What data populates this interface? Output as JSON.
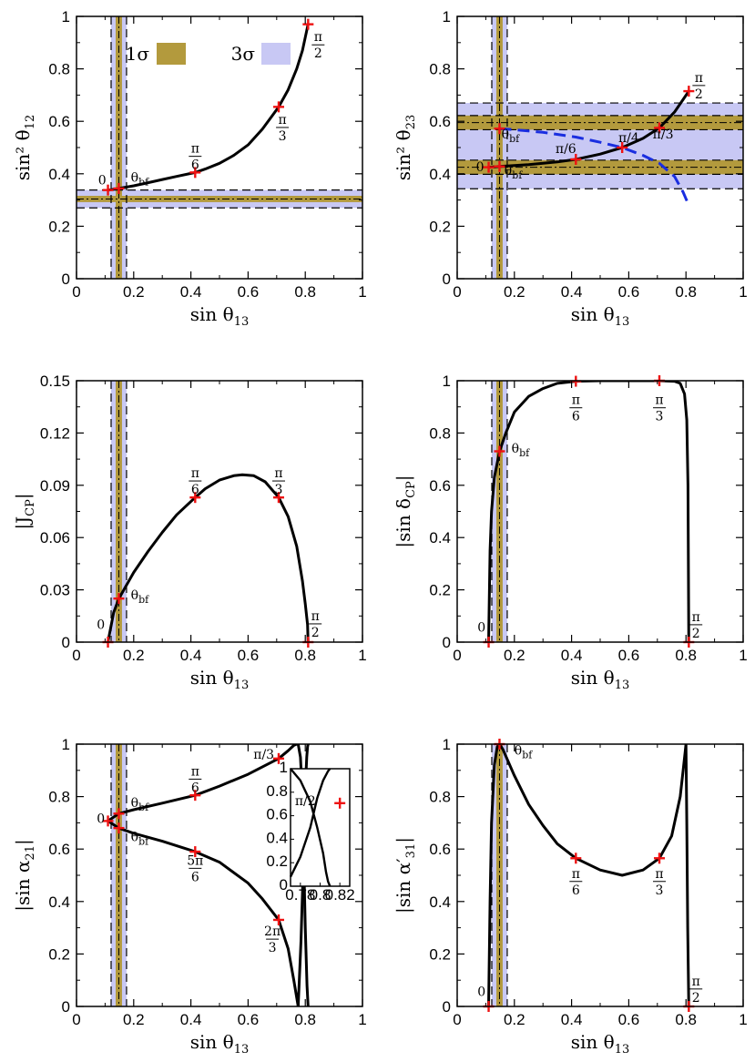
{
  "figure": {
    "legend": {
      "items": [
        {
          "label": "1σ",
          "color": "#b39a3d"
        },
        {
          "label": "3σ",
          "color": "#c8c8f4"
        }
      ],
      "location": "top"
    },
    "colors": {
      "band1": "#b39a3d",
      "band3": "#c8c8f4",
      "curve": "#000000",
      "marker": "#ee1111",
      "dashed": "#1a2ee0"
    }
  },
  "chart_data": [
    {
      "id": "p1",
      "type": "line",
      "xlabel": "sin θ13",
      "ylabel": "sin² θ12",
      "xlim": [
        0,
        1
      ],
      "ylim": [
        0,
        1
      ],
      "xticks": [
        "0",
        "0.2",
        "0.4",
        "0.6",
        "0.8",
        "1"
      ],
      "yticks": [
        "0",
        "0.2",
        "0.4",
        "0.6",
        "0.8",
        "1"
      ],
      "bands": {
        "x": {
          "center": 0.148,
          "w1": 0.011,
          "w3": 0.027
        },
        "y": {
          "center": 0.304,
          "w1": 0.012,
          "w3": 0.034
        }
      },
      "series": [
        {
          "name": "main",
          "style": "solid",
          "x": [
            0.11,
            0.12,
            0.148,
            0.2,
            0.25,
            0.3,
            0.35,
            0.415,
            0.45,
            0.5,
            0.55,
            0.6,
            0.65,
            0.707,
            0.74,
            0.77,
            0.79,
            0.81
          ],
          "y": [
            0.338,
            0.339,
            0.344,
            0.354,
            0.366,
            0.378,
            0.39,
            0.405,
            0.418,
            0.44,
            0.47,
            0.51,
            0.57,
            0.655,
            0.72,
            0.8,
            0.87,
            0.97
          ]
        }
      ],
      "markers": [
        {
          "x": 0.11,
          "y": 0.338
        },
        {
          "x": 0.148,
          "y": 0.344
        },
        {
          "x": 0.415,
          "y": 0.405
        },
        {
          "x": 0.707,
          "y": 0.655
        },
        {
          "x": 0.81,
          "y": 0.97
        }
      ],
      "annotations": [
        {
          "text": "0",
          "x": 0.09,
          "y": 0.36
        },
        {
          "text": "θbf",
          "x": 0.19,
          "y": 0.37
        },
        {
          "text": "π|6",
          "x": 0.415,
          "y": 0.47,
          "frac": true
        },
        {
          "text": "π|3",
          "x": 0.72,
          "y": 0.58,
          "frac": true
        },
        {
          "text": "π|2",
          "x": 0.845,
          "y": 0.895,
          "frac": true
        }
      ]
    },
    {
      "id": "p2",
      "type": "line",
      "xlabel": "sin θ13",
      "ylabel": "sin² θ23",
      "xlim": [
        0,
        1
      ],
      "ylim": [
        0,
        1
      ],
      "xticks": [
        "0",
        "0.2",
        "0.4",
        "0.6",
        "0.8",
        "1"
      ],
      "yticks": [
        "0",
        "0.2",
        "0.4",
        "0.6",
        "0.8",
        "1"
      ],
      "bands": {
        "x": {
          "center": 0.148,
          "w1": 0.011,
          "w3": 0.027
        },
        "y2": [
          {
            "center": 0.425,
            "w1": 0.027
          },
          {
            "center": 0.595,
            "w1": 0.027
          }
        ],
        "y3": [
          0.343,
          0.67
        ]
      },
      "series": [
        {
          "name": "solid",
          "style": "solid",
          "x": [
            0.11,
            0.148,
            0.25,
            0.35,
            0.415,
            0.5,
            0.577,
            0.65,
            0.707,
            0.76,
            0.81
          ],
          "y": [
            0.425,
            0.428,
            0.435,
            0.445,
            0.455,
            0.475,
            0.5,
            0.535,
            0.575,
            0.635,
            0.715
          ]
        },
        {
          "name": "dashed",
          "style": "dashed",
          "x": [
            0.148,
            0.2,
            0.3,
            0.415,
            0.5,
            0.577,
            0.65,
            0.707,
            0.76,
            0.79,
            0.81
          ],
          "y": [
            0.572,
            0.568,
            0.558,
            0.54,
            0.52,
            0.5,
            0.47,
            0.44,
            0.39,
            0.33,
            0.28
          ]
        }
      ],
      "markers": [
        {
          "x": 0.11,
          "y": 0.425
        },
        {
          "x": 0.148,
          "y": 0.428
        },
        {
          "x": 0.148,
          "y": 0.572
        },
        {
          "x": 0.415,
          "y": 0.455
        },
        {
          "x": 0.577,
          "y": 0.5
        },
        {
          "x": 0.707,
          "y": 0.575
        },
        {
          "x": 0.81,
          "y": 0.715
        }
      ],
      "annotations": [
        {
          "text": "0",
          "x": 0.08,
          "y": 0.41
        },
        {
          "text": "θbf",
          "x": 0.165,
          "y": 0.395
        },
        {
          "text": "θbf",
          "x": 0.155,
          "y": 0.535
        },
        {
          "text": "π/6",
          "x": 0.38,
          "y": 0.48
        },
        {
          "text": "π/4",
          "x": 0.6,
          "y": 0.52
        },
        {
          "text": "π/3",
          "x": 0.72,
          "y": 0.535
        },
        {
          "text": "π|2",
          "x": 0.845,
          "y": 0.74,
          "frac": true
        }
      ]
    },
    {
      "id": "p3",
      "type": "line",
      "xlabel": "sin θ13",
      "ylabel": "|JCP|",
      "xlim": [
        0,
        1
      ],
      "ylim": [
        0,
        0.15
      ],
      "xticks": [
        "0",
        "0.2",
        "0.4",
        "0.6",
        "0.8",
        "1"
      ],
      "yticks": [
        "0",
        "0.03",
        "0.06",
        "0.09",
        "0.12",
        "0.15"
      ],
      "bands": {
        "x": {
          "center": 0.148,
          "w1": 0.011,
          "w3": 0.027
        }
      },
      "series": [
        {
          "name": "main",
          "style": "solid",
          "x": [
            0.11,
            0.13,
            0.148,
            0.2,
            0.25,
            0.3,
            0.35,
            0.415,
            0.45,
            0.5,
            0.55,
            0.58,
            0.62,
            0.66,
            0.707,
            0.74,
            0.77,
            0.79,
            0.8,
            0.808,
            0.81
          ],
          "y": [
            0,
            0.017,
            0.025,
            0.04,
            0.052,
            0.063,
            0.073,
            0.083,
            0.088,
            0.093,
            0.0955,
            0.096,
            0.0955,
            0.092,
            0.083,
            0.072,
            0.055,
            0.035,
            0.022,
            0.01,
            0
          ]
        }
      ],
      "markers": [
        {
          "x": 0.11,
          "y": 0
        },
        {
          "x": 0.148,
          "y": 0.025
        },
        {
          "x": 0.415,
          "y": 0.083
        },
        {
          "x": 0.707,
          "y": 0.083
        },
        {
          "x": 0.81,
          "y": 0
        }
      ],
      "annotations": [
        {
          "text": "0",
          "x": 0.085,
          "y": 0.0075
        },
        {
          "text": "θbf",
          "x": 0.19,
          "y": 0.0245
        },
        {
          "text": "π|6",
          "x": 0.415,
          "y": 0.093,
          "frac": true
        },
        {
          "text": "π|3",
          "x": 0.707,
          "y": 0.093,
          "frac": true
        },
        {
          "text": "π|2",
          "x": 0.835,
          "y": 0.011,
          "frac": true
        }
      ]
    },
    {
      "id": "p4",
      "type": "line",
      "xlabel": "sin θ13",
      "ylabel": "|sin δCP|",
      "xlim": [
        0,
        1
      ],
      "ylim": [
        0,
        1
      ],
      "xticks": [
        "0",
        "0.2",
        "0.4",
        "0.6",
        "0.8",
        "1"
      ],
      "yticks": [
        "0",
        "0.2",
        "0.4",
        "0.6",
        "0.8",
        "1"
      ],
      "bands": {
        "x": {
          "center": 0.148,
          "w1": 0.011,
          "w3": 0.027
        }
      },
      "series": [
        {
          "name": "main",
          "style": "solid",
          "x": [
            0.11,
            0.115,
            0.12,
            0.13,
            0.148,
            0.17,
            0.2,
            0.25,
            0.3,
            0.35,
            0.415,
            0.5,
            0.6,
            0.707,
            0.76,
            0.78,
            0.795,
            0.803,
            0.807,
            0.81
          ],
          "y": [
            0,
            0.35,
            0.5,
            0.63,
            0.73,
            0.8,
            0.88,
            0.94,
            0.97,
            0.99,
            0.998,
            1,
            1,
            1,
            0.998,
            0.99,
            0.95,
            0.85,
            0.6,
            0
          ]
        }
      ],
      "markers": [
        {
          "x": 0.11,
          "y": 0
        },
        {
          "x": 0.148,
          "y": 0.73
        },
        {
          "x": 0.415,
          "y": 0.998
        },
        {
          "x": 0.707,
          "y": 1
        },
        {
          "x": 0.81,
          "y": 0
        }
      ],
      "annotations": [
        {
          "text": "0",
          "x": 0.085,
          "y": 0.04
        },
        {
          "text": "θbf",
          "x": 0.19,
          "y": 0.725
        },
        {
          "text": "π|6",
          "x": 0.415,
          "y": 0.9,
          "frac": true
        },
        {
          "text": "π|3",
          "x": 0.707,
          "y": 0.9,
          "frac": true
        },
        {
          "text": "π|2",
          "x": 0.835,
          "y": 0.07,
          "frac": true
        }
      ]
    },
    {
      "id": "p5",
      "type": "line",
      "xlabel": "sin θ13",
      "ylabel": "|sin α21|",
      "xlim": [
        0,
        1
      ],
      "ylim": [
        0,
        1
      ],
      "xticks": [
        "0",
        "0.2",
        "0.4",
        "0.6",
        "0.8",
        "1"
      ],
      "yticks": [
        "0",
        "0.2",
        "0.4",
        "0.6",
        "0.8",
        "1"
      ],
      "bands": {
        "x": {
          "center": 0.148,
          "w1": 0.011,
          "w3": 0.027
        }
      },
      "series": [
        {
          "name": "upper",
          "style": "solid",
          "x": [
            0.11,
            0.148,
            0.2,
            0.3,
            0.415,
            0.5,
            0.6,
            0.707,
            0.74,
            0.76,
            0.77,
            0.78
          ],
          "y": [
            0.707,
            0.735,
            0.75,
            0.775,
            0.805,
            0.84,
            0.885,
            0.945,
            0.975,
            0.995,
            1,
            1
          ]
        },
        {
          "name": "lower",
          "style": "solid",
          "x": [
            0.11,
            0.148,
            0.2,
            0.3,
            0.415,
            0.5,
            0.6,
            0.65,
            0.707,
            0.74,
            0.76,
            0.775
          ],
          "y": [
            0.707,
            0.68,
            0.66,
            0.63,
            0.59,
            0.55,
            0.47,
            0.41,
            0.33,
            0.22,
            0.1,
            0
          ]
        },
        {
          "name": "loop",
          "style": "solid",
          "x": [
            0.775,
            0.785,
            0.792,
            0.797,
            0.801,
            0.805,
            0.808,
            0.81
          ],
          "y": [
            0,
            0.25,
            0.5,
            0.7,
            0.85,
            0.95,
            0.99,
            1
          ]
        },
        {
          "name": "spike",
          "style": "solid",
          "x": [
            0.775,
            0.783,
            0.79,
            0.795,
            0.8,
            0.806,
            0.81
          ],
          "y": [
            1,
            0.95,
            0.8,
            0.55,
            0.3,
            0.08,
            0
          ]
        }
      ],
      "markers": [
        {
          "x": 0.11,
          "y": 0.707
        },
        {
          "x": 0.148,
          "y": 0.735
        },
        {
          "x": 0.148,
          "y": 0.68
        },
        {
          "x": 0.415,
          "y": 0.805
        },
        {
          "x": 0.415,
          "y": 0.59
        },
        {
          "x": 0.707,
          "y": 0.945
        },
        {
          "x": 0.707,
          "y": 0.33
        }
      ],
      "annotations": [
        {
          "text": "0",
          "x": 0.085,
          "y": 0.7
        },
        {
          "text": "θbf",
          "x": 0.19,
          "y": 0.76
        },
        {
          "text": "θbf",
          "x": 0.19,
          "y": 0.63
        },
        {
          "text": "π|6",
          "x": 0.415,
          "y": 0.87,
          "frac": true
        },
        {
          "text": "5π|6",
          "x": 0.415,
          "y": 0.53,
          "frac": true
        },
        {
          "text": "2π|3",
          "x": 0.685,
          "y": 0.26,
          "frac": true
        },
        {
          "text": "π/3",
          "x": 0.655,
          "y": 0.945
        }
      ],
      "inset": {
        "xlim": [
          0.77,
          0.83
        ],
        "ylim": [
          0,
          1
        ],
        "xticks": [
          "0.78",
          "0.8",
          "0.82"
        ],
        "yticks": [
          "0",
          "0.2",
          "0.4",
          "0.6",
          "0.8",
          "1"
        ],
        "series": [
          {
            "name": "rise",
            "style": "solid",
            "x": [
              0.77,
              0.78,
              0.79,
              0.797,
              0.803,
              0.808,
              0.81
            ],
            "y": [
              0.08,
              0.25,
              0.5,
              0.75,
              0.9,
              0.98,
              1
            ]
          },
          {
            "name": "fall",
            "style": "solid",
            "x": [
              0.77,
              0.78,
              0.79,
              0.797,
              0.803,
              0.806,
              0.808,
              0.81
            ],
            "y": [
              1,
              0.9,
              0.72,
              0.5,
              0.28,
              0.12,
              0.04,
              0
            ]
          }
        ],
        "markers": [
          {
            "x": 0.82,
            "y": 0.707
          }
        ],
        "annotations": [
          {
            "text": "π/2",
            "x": 0.785,
            "y": 0.69
          }
        ]
      }
    },
    {
      "id": "p6",
      "type": "line",
      "xlabel": "sin θ13",
      "ylabel": "|sin α′31|",
      "xlim": [
        0,
        1
      ],
      "ylim": [
        0,
        1
      ],
      "xticks": [
        "0",
        "0.2",
        "0.4",
        "0.6",
        "0.8",
        "1"
      ],
      "yticks": [
        "0",
        "0.2",
        "0.4",
        "0.6",
        "0.8",
        "1"
      ],
      "bands": {
        "x": {
          "center": 0.148,
          "w1": 0.011,
          "w3": 0.027
        }
      },
      "series": [
        {
          "name": "main",
          "style": "solid",
          "x": [
            0.11,
            0.115,
            0.12,
            0.13,
            0.14,
            0.148,
            0.16,
            0.2,
            0.25,
            0.3,
            0.35,
            0.415,
            0.5,
            0.577,
            0.65,
            0.707,
            0.75,
            0.78,
            0.79,
            0.797,
            0.8,
            0.803,
            0.806,
            0.81
          ],
          "y": [
            0,
            0.4,
            0.7,
            0.92,
            0.99,
            1,
            0.98,
            0.88,
            0.77,
            0.69,
            0.62,
            0.565,
            0.52,
            0.5,
            0.52,
            0.565,
            0.65,
            0.8,
            0.9,
            0.97,
            1,
            0.7,
            0.3,
            0
          ]
        }
      ],
      "markers": [
        {
          "x": 0.11,
          "y": 0
        },
        {
          "x": 0.148,
          "y": 1
        },
        {
          "x": 0.415,
          "y": 0.565
        },
        {
          "x": 0.707,
          "y": 0.565
        },
        {
          "x": 0.81,
          "y": 0
        }
      ],
      "annotations": [
        {
          "text": "0",
          "x": 0.085,
          "y": 0.04
        },
        {
          "text": "θbf",
          "x": 0.2,
          "y": 0.96
        },
        {
          "text": "π|6",
          "x": 0.415,
          "y": 0.48,
          "frac": true
        },
        {
          "text": "π|3",
          "x": 0.707,
          "y": 0.48,
          "frac": true
        },
        {
          "text": "π|2",
          "x": 0.835,
          "y": 0.07,
          "frac": true
        }
      ]
    }
  ]
}
